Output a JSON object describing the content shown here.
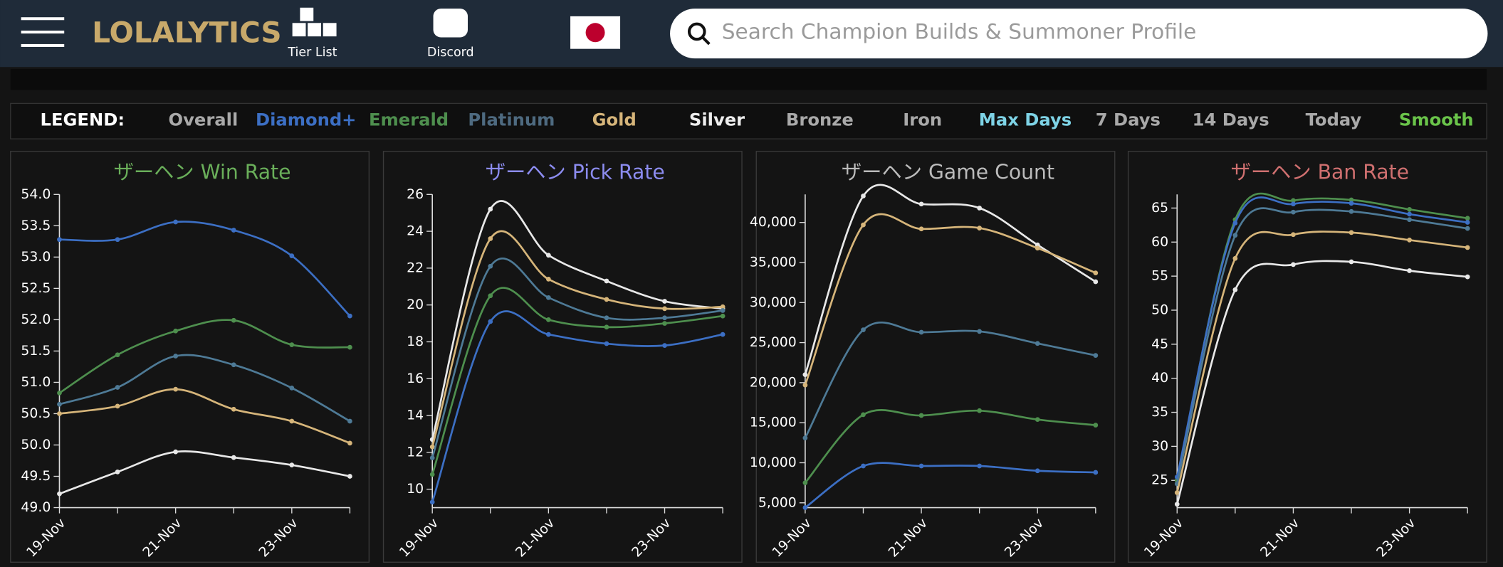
{
  "header": {
    "logo": "LOLALYTICS",
    "nav": [
      "Tier List",
      "Discord"
    ],
    "search_placeholder": "Search Champion Builds & Summoner Profile"
  },
  "legend": {
    "label": "LEGEND:",
    "items": [
      {
        "text": "Overall",
        "color": "#a9a9a9"
      },
      {
        "text": "Diamond+",
        "color": "#3c6fc4"
      },
      {
        "text": "Emerald",
        "color": "#4e8f4e"
      },
      {
        "text": "Platinum",
        "color": "#4e6a80"
      },
      {
        "text": "Gold",
        "color": "#d6b57a"
      },
      {
        "text": "Silver",
        "color": "#eeeeee"
      },
      {
        "text": "Bronze",
        "color": "#a9a9a9"
      },
      {
        "text": "Iron",
        "color": "#a9a9a9"
      },
      {
        "text": "Max Days",
        "color": "#7ed3e6"
      },
      {
        "text": "7 Days",
        "color": "#a9a9a9"
      },
      {
        "text": "14 Days",
        "color": "#a9a9a9"
      },
      {
        "text": "Today",
        "color": "#a9a9a9"
      },
      {
        "text": "Smooth",
        "color": "#6ac44a"
      }
    ]
  },
  "chart_data": [
    {
      "type": "line",
      "title": "ザーヘン Win Rate",
      "title_color": "#6aaf5a",
      "categories": [
        "19-Nov",
        null,
        "21-Nov",
        null,
        "23-Nov",
        null
      ],
      "ylim": [
        49,
        54
      ],
      "yticks": [
        {
          "value": 49,
          "label": "49.0"
        },
        49.5,
        {
          "value": 50,
          "label": "50.0"
        },
        50.5,
        {
          "value": 51,
          "label": "51.0"
        },
        51.5,
        {
          "value": 52,
          "label": "52.0"
        },
        52.5,
        {
          "value": 53,
          "label": "53.0"
        },
        53.5,
        {
          "value": 54,
          "label": "54.0"
        }
      ],
      "series": [
        {
          "color": "#3c6fc4",
          "values": [
            53.28,
            53.28,
            53.56,
            53.43,
            53.02,
            52.06
          ]
        },
        {
          "color": "#4e8f4e",
          "values": [
            50.83,
            51.44,
            51.82,
            51.99,
            51.6,
            51.56
          ]
        },
        {
          "color": "#4e7a96",
          "values": [
            50.65,
            50.92,
            51.42,
            51.28,
            50.91,
            50.38
          ]
        },
        {
          "color": "#d6b57a",
          "values": [
            50.5,
            50.62,
            50.89,
            50.57,
            50.38,
            50.03
          ]
        },
        {
          "color": "#e8e8e8",
          "values": [
            49.22,
            49.57,
            49.89,
            49.8,
            49.68,
            49.5
          ]
        }
      ]
    },
    {
      "type": "line",
      "title": "ザーヘン Pick Rate",
      "title_color": "#8c8cf0",
      "categories": [
        "19-Nov",
        null,
        "21-Nov",
        null,
        "23-Nov",
        null
      ],
      "ylim": [
        9,
        26
      ],
      "yticks": [
        10,
        12,
        14,
        16,
        18,
        20,
        22,
        24,
        26
      ],
      "series": [
        {
          "color": "#e8e8e8",
          "values": [
            12.7,
            25.2,
            22.7,
            21.3,
            20.2,
            19.8
          ]
        },
        {
          "color": "#d6b57a",
          "values": [
            12.3,
            23.6,
            21.4,
            20.3,
            19.8,
            19.9
          ]
        },
        {
          "color": "#4e7a96",
          "values": [
            11.7,
            22.1,
            20.4,
            19.3,
            19.3,
            19.7
          ]
        },
        {
          "color": "#4e8f4e",
          "values": [
            10.8,
            20.5,
            19.2,
            18.8,
            19.0,
            19.4
          ]
        },
        {
          "color": "#3c6fc4",
          "values": [
            9.3,
            19.1,
            18.4,
            17.9,
            17.8,
            18.4
          ]
        }
      ]
    },
    {
      "type": "line",
      "title": "ザーヘン Game Count",
      "title_color": "#bbbbbb",
      "categories": [
        "19-Nov",
        null,
        "21-Nov",
        null,
        "23-Nov",
        null
      ],
      "ylim": [
        4400,
        43500
      ],
      "yticks": [
        {
          "value": 5000,
          "label": "5,000"
        },
        {
          "value": 10000,
          "label": "10,000"
        },
        {
          "value": 15000,
          "label": "15,000"
        },
        {
          "value": 20000,
          "label": "20,000"
        },
        {
          "value": 25000,
          "label": "25,000"
        },
        {
          "value": 30000,
          "label": "30,000"
        },
        {
          "value": 35000,
          "label": "35,000"
        },
        {
          "value": 40000,
          "label": "40,000"
        }
      ],
      "series": [
        {
          "color": "#e8e8e8",
          "values": [
            21000,
            43300,
            42300,
            41800,
            37200,
            32600
          ]
        },
        {
          "color": "#d6b57a",
          "values": [
            19700,
            39700,
            39200,
            39300,
            36800,
            33700
          ]
        },
        {
          "color": "#4e7a96",
          "values": [
            13100,
            26600,
            26300,
            26400,
            24900,
            23400
          ]
        },
        {
          "color": "#4e8f4e",
          "values": [
            7500,
            16000,
            15900,
            16500,
            15400,
            14700
          ]
        },
        {
          "color": "#3c6fc4",
          "values": [
            4400,
            9600,
            9600,
            9600,
            9000,
            8800
          ]
        }
      ]
    },
    {
      "type": "line",
      "title": "ザーヘン Ban Rate",
      "title_color": "#d07070",
      "categories": [
        "19-Nov",
        null,
        "21-Nov",
        null,
        "23-Nov",
        null
      ],
      "ylim": [
        21,
        67
      ],
      "yticks": [
        25,
        30,
        35,
        40,
        45,
        50,
        55,
        60,
        65
      ],
      "series": [
        {
          "color": "#4e8f4e",
          "values": [
            25,
            63.3,
            66.1,
            66.2,
            64.8,
            63.5
          ]
        },
        {
          "color": "#3c6fc4",
          "values": [
            25.5,
            62.8,
            65.6,
            65.7,
            64.1,
            62.9
          ]
        },
        {
          "color": "#4e7a96",
          "values": [
            24.5,
            61.0,
            64.4,
            64.5,
            63.3,
            62.0
          ]
        },
        {
          "color": "#d6b57a",
          "values": [
            23.2,
            57.6,
            61.1,
            61.4,
            60.3,
            59.2
          ]
        },
        {
          "color": "#e8e8e8",
          "values": [
            21.5,
            53.0,
            56.7,
            57.1,
            55.8,
            54.9
          ]
        }
      ]
    }
  ]
}
